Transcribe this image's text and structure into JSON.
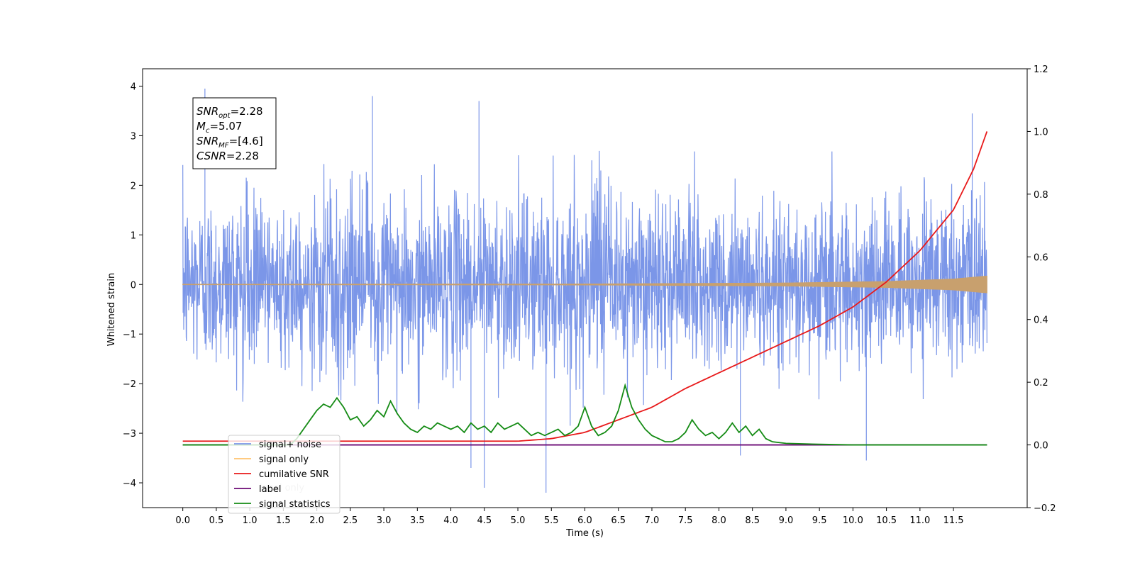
{
  "chart_data": {
    "type": "line",
    "xlabel": "Time (s)",
    "ylabel": "Whitened strain",
    "xlim": [
      -0.6,
      12.6
    ],
    "ylim": [
      -4.5,
      4.35
    ],
    "y2lim": [
      -0.2,
      1.2
    ],
    "x_ticks": [
      "0.0",
      "0.5",
      "1.0",
      "1.5",
      "2.0",
      "2.5",
      "3.0",
      "3.5",
      "4.0",
      "4.5",
      "5.0",
      "5.5",
      "6.0",
      "6.5",
      "7.0",
      "7.5",
      "8.0",
      "8.5",
      "9.0",
      "9.5",
      "10.0",
      "10.5",
      "11.0",
      "11.5"
    ],
    "y_ticks": [
      4,
      3,
      2,
      1,
      0,
      -1,
      -2,
      -3,
      -4
    ],
    "y2_ticks": [
      "1.2",
      "1.0",
      "0.8",
      "0.6",
      "0.4",
      "0.2",
      "0.0",
      "−0.2"
    ],
    "grid": false,
    "legend_position": "lower-left",
    "annotation": {
      "snr_opt": {
        "sym": "SNR",
        "sub": "opt",
        "val": "=2.28"
      },
      "mc": {
        "sym": "M",
        "sub": "c",
        "val": "=5.07"
      },
      "snr_mf": {
        "sym": "SNR",
        "sub": "MF",
        "val": "=[4.6]"
      },
      "csnr": {
        "sym": "CSNR",
        "val": "=2.28"
      }
    },
    "series": [
      {
        "name": "signal+ noise",
        "axis": "left",
        "color": "#7b96e8",
        "description": "whitened noise, amplitude roughly ±2 with spikes up to ±4",
        "typical_band": [
          -1.9,
          2.1
        ],
        "spikes": [
          [
            0.33,
            3.95
          ],
          [
            2.83,
            3.8
          ],
          [
            4.42,
            3.7
          ],
          [
            11.78,
            3.45
          ],
          [
            4.5,
            -4.1
          ],
          [
            5.42,
            -4.2
          ],
          [
            4.3,
            -3.7
          ],
          [
            10.2,
            -3.55
          ],
          [
            8.32,
            -3.45
          ]
        ]
      },
      {
        "name": "signal only",
        "axis": "left",
        "color": "#c8a06e",
        "description": "chirp signal, envelope grows from ~0 to ~0.18 at 12 s",
        "envelope": [
          [
            0,
            0.005
          ],
          [
            6,
            0.01
          ],
          [
            9,
            0.03
          ],
          [
            10.5,
            0.06
          ],
          [
            11.5,
            0.11
          ],
          [
            12.0,
            0.17
          ]
        ]
      },
      {
        "name": "cumilative SNR",
        "axis": "right",
        "color": "#e8191a",
        "points": [
          [
            0,
            0.012
          ],
          [
            5,
            0.012
          ],
          [
            5.5,
            0.02
          ],
          [
            6,
            0.04
          ],
          [
            6.5,
            0.08
          ],
          [
            7,
            0.12
          ],
          [
            7.5,
            0.18
          ],
          [
            8,
            0.23
          ],
          [
            8.5,
            0.28
          ],
          [
            9,
            0.33
          ],
          [
            9.5,
            0.38
          ],
          [
            10,
            0.44
          ],
          [
            10.5,
            0.52
          ],
          [
            11,
            0.62
          ],
          [
            11.5,
            0.75
          ],
          [
            11.8,
            0.88
          ],
          [
            12.0,
            1.0
          ]
        ]
      },
      {
        "name": "label",
        "axis": "right",
        "color": "#6b0a75",
        "points": [
          [
            0,
            0.0
          ],
          [
            12.0,
            0.0
          ]
        ]
      },
      {
        "name": "signal statistics",
        "axis": "right",
        "color": "#148b14",
        "points": [
          [
            0,
            0.0
          ],
          [
            1.6,
            0.0
          ],
          [
            1.7,
            0.02
          ],
          [
            1.8,
            0.05
          ],
          [
            1.9,
            0.08
          ],
          [
            2.0,
            0.11
          ],
          [
            2.1,
            0.13
          ],
          [
            2.2,
            0.12
          ],
          [
            2.3,
            0.15
          ],
          [
            2.4,
            0.12
          ],
          [
            2.5,
            0.08
          ],
          [
            2.6,
            0.09
          ],
          [
            2.7,
            0.06
          ],
          [
            2.8,
            0.08
          ],
          [
            2.9,
            0.11
          ],
          [
            3.0,
            0.09
          ],
          [
            3.1,
            0.14
          ],
          [
            3.2,
            0.1
          ],
          [
            3.3,
            0.07
          ],
          [
            3.4,
            0.05
          ],
          [
            3.5,
            0.04
          ],
          [
            3.6,
            0.06
          ],
          [
            3.7,
            0.05
          ],
          [
            3.8,
            0.07
          ],
          [
            3.9,
            0.06
          ],
          [
            4.0,
            0.05
          ],
          [
            4.1,
            0.06
          ],
          [
            4.2,
            0.04
          ],
          [
            4.3,
            0.07
          ],
          [
            4.4,
            0.05
          ],
          [
            4.5,
            0.06
          ],
          [
            4.6,
            0.04
          ],
          [
            4.7,
            0.07
          ],
          [
            4.8,
            0.05
          ],
          [
            4.9,
            0.06
          ],
          [
            5.0,
            0.07
          ],
          [
            5.1,
            0.05
          ],
          [
            5.2,
            0.03
          ],
          [
            5.3,
            0.04
          ],
          [
            5.4,
            0.03
          ],
          [
            5.5,
            0.04
          ],
          [
            5.6,
            0.05
          ],
          [
            5.7,
            0.03
          ],
          [
            5.8,
            0.04
          ],
          [
            5.9,
            0.06
          ],
          [
            6.0,
            0.12
          ],
          [
            6.1,
            0.06
          ],
          [
            6.2,
            0.03
          ],
          [
            6.3,
            0.04
          ],
          [
            6.4,
            0.06
          ],
          [
            6.5,
            0.11
          ],
          [
            6.6,
            0.19
          ],
          [
            6.7,
            0.12
          ],
          [
            6.8,
            0.08
          ],
          [
            6.9,
            0.05
          ],
          [
            7.0,
            0.03
          ],
          [
            7.1,
            0.02
          ],
          [
            7.2,
            0.01
          ],
          [
            7.3,
            0.01
          ],
          [
            7.4,
            0.02
          ],
          [
            7.5,
            0.04
          ],
          [
            7.6,
            0.08
          ],
          [
            7.7,
            0.05
          ],
          [
            7.8,
            0.03
          ],
          [
            7.9,
            0.04
          ],
          [
            8.0,
            0.02
          ],
          [
            8.1,
            0.04
          ],
          [
            8.2,
            0.07
          ],
          [
            8.3,
            0.04
          ],
          [
            8.4,
            0.06
          ],
          [
            8.5,
            0.03
          ],
          [
            8.6,
            0.05
          ],
          [
            8.7,
            0.02
          ],
          [
            8.8,
            0.01
          ],
          [
            9.0,
            0.005
          ],
          [
            9.5,
            0.002
          ],
          [
            10.0,
            0.0
          ],
          [
            12.0,
            0.0
          ]
        ]
      }
    ],
    "legend": [
      {
        "label": "signal+ noise",
        "color": "#7b96e8"
      },
      {
        "label": "signal only",
        "color": "#ffc36e"
      },
      {
        "label": "cumilative SNR",
        "color": "#e8191a"
      },
      {
        "label": "label",
        "color": "#6b0a75"
      },
      {
        "label": "signal statistics",
        "color": "#148b14"
      }
    ],
    "legend_occluded_text": "label only"
  }
}
